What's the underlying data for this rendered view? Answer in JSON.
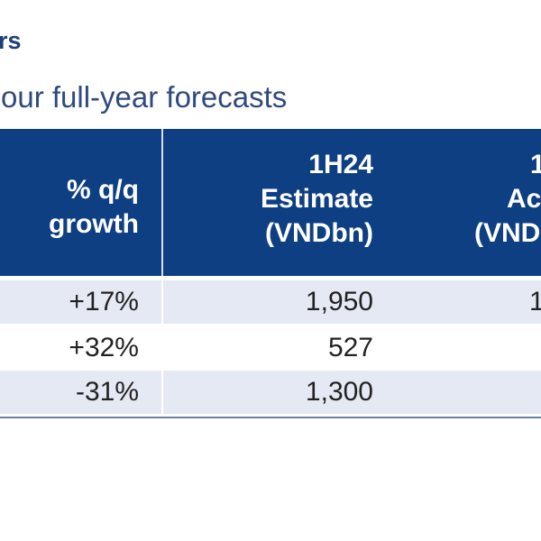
{
  "title_fragment": "rs",
  "subtitle_fragment": "our full-year forecasts",
  "table": {
    "headers": {
      "growth": [
        "% q/q",
        "growth"
      ],
      "estimate": [
        "1H24",
        "Estimate",
        "(VNDbn)"
      ],
      "actual": [
        "1",
        "Ac",
        "(VND"
      ]
    },
    "rows": [
      {
        "growth": "+17%",
        "estimate": "1,950",
        "actual": "1"
      },
      {
        "growth": "+32%",
        "estimate": "527",
        "actual": ""
      },
      {
        "growth": "-31%",
        "estimate": "1,300",
        "actual": ""
      }
    ]
  },
  "colors": {
    "header_bg": "#0e3f83",
    "row_alt_bg": "#e4e9f3",
    "title": "#1f3f7a"
  }
}
